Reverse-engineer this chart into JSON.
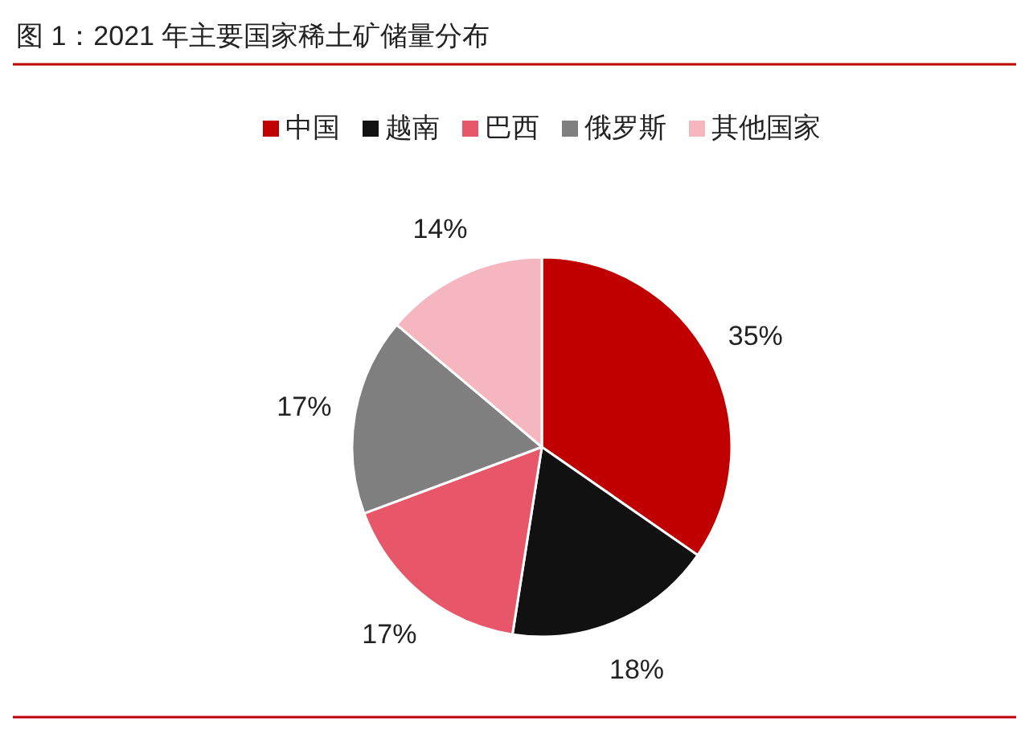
{
  "chart_data": {
    "type": "pie",
    "title": "图 1：2021 年主要国家稀土矿储量分布",
    "categories": [
      "中国",
      "越南",
      "巴西",
      "俄罗斯",
      "其他国家"
    ],
    "values": [
      35,
      18,
      17,
      17,
      14
    ],
    "colors": [
      "#c00000",
      "#111111",
      "#e8566a",
      "#7f7f7f",
      "#f6b6c0"
    ],
    "value_labels": [
      "35%",
      "18%",
      "17%",
      "17%",
      "14%"
    ],
    "legend": "top"
  }
}
